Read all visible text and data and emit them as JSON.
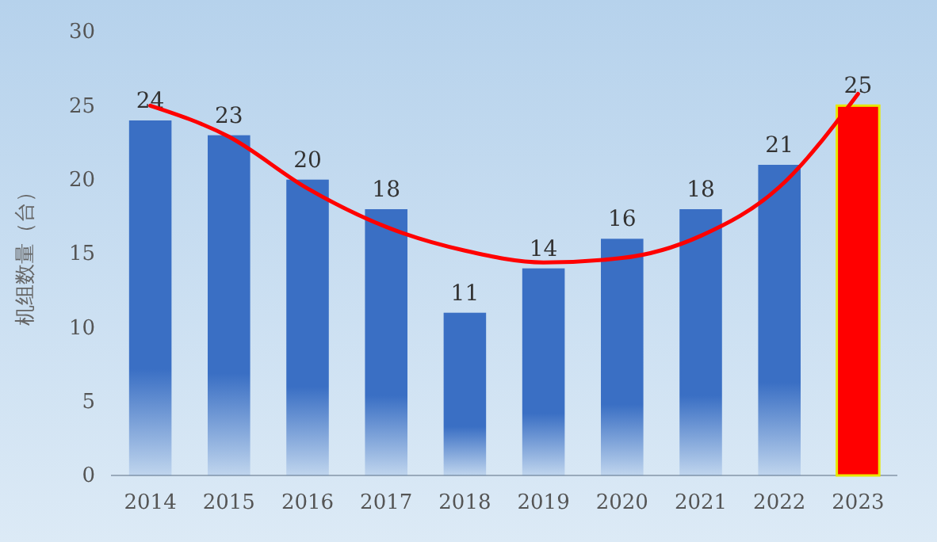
{
  "chart_data": {
    "type": "bar",
    "ylabel": "机组数量（台）",
    "categories": [
      "2014",
      "2015",
      "2016",
      "2017",
      "2018",
      "2019",
      "2020",
      "2021",
      "2022",
      "2023"
    ],
    "ylim": [
      0,
      30
    ],
    "yticks": [
      0,
      5,
      10,
      15,
      20,
      25,
      30
    ],
    "series": [
      {
        "colors": [
          "#3a6fc4",
          "#3a6fc4",
          "#3a6fc4",
          "#3a6fc4",
          "#3a6fc4",
          "#3a6fc4",
          "#3a6fc4",
          "#3a6fc4",
          "#3a6fc4",
          "#ff0000"
        ],
        "values": [
          24,
          23,
          20,
          18,
          11,
          14,
          16,
          18,
          21,
          25
        ],
        "value_labels": [
          "24",
          "23",
          "20",
          "18",
          "11",
          "14",
          "16",
          "18",
          "21",
          "25"
        ]
      },
      {
        "type": "line",
        "color": "#ff0000",
        "values": [
          25.0,
          22.9,
          19.4,
          16.8,
          15.2,
          14.4,
          14.7,
          16.2,
          19.5,
          25.8
        ]
      }
    ]
  }
}
